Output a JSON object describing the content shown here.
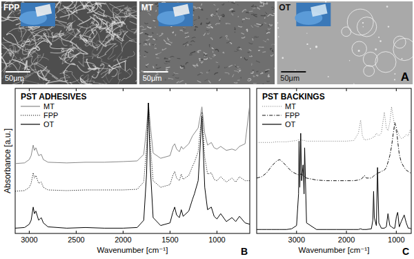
{
  "image_panels": {
    "letter": "A",
    "panels": [
      {
        "label": "FPP",
        "scale_bar": "50μm"
      },
      {
        "label": "MT",
        "scale_bar": "50μm"
      },
      {
        "label": "OT",
        "scale_bar": "50μm"
      }
    ]
  },
  "chart_data": [
    {
      "type": "line",
      "title": "PST ADHESIVES",
      "x_label": "Wavenumber [cm⁻¹]",
      "y_label": "Absorbance [a.u.]",
      "annotations": [
        "B"
      ],
      "legend": "upper left",
      "grid": false,
      "tick_labels": "x",
      "xlim": [
        3150,
        650
      ],
      "xticks": [
        3000,
        2500,
        2000,
        1500,
        1000
      ],
      "ylim": [
        0,
        11
      ],
      "x": [
        3150,
        3050,
        3000,
        2980,
        2958,
        2945,
        2930,
        2900,
        2872,
        2850,
        2800,
        2600,
        2400,
        2200,
        2000,
        1850,
        1780,
        1750,
        1730,
        1710,
        1680,
        1600,
        1500,
        1470,
        1450,
        1430,
        1400,
        1380,
        1360,
        1300,
        1260,
        1240,
        1200,
        1160,
        1130,
        1100,
        1060,
        1030,
        1000,
        960,
        900,
        840,
        800,
        760,
        700,
        650
      ],
      "series": [
        {
          "name": "MT",
          "color": "#888888",
          "line_style": "solid",
          "values": [
            5.3,
            5.35,
            5.6,
            5.9,
            6.7,
            6.3,
            6.5,
            5.9,
            6.0,
            5.6,
            5.4,
            5.35,
            5.4,
            5.4,
            5.45,
            5.5,
            6.0,
            8.0,
            9.9,
            8.2,
            6.1,
            5.7,
            5.9,
            6.6,
            6.8,
            6.4,
            6.2,
            6.6,
            6.4,
            6.8,
            7.4,
            7.6,
            8.0,
            9.6,
            7.6,
            6.7,
            6.9,
            6.5,
            6.4,
            6.6,
            6.3,
            6.4,
            6.3,
            6.6,
            6.8,
            9.8
          ]
        },
        {
          "name": "FPP",
          "color": "#111111",
          "line_style": "dotted",
          "values": [
            3.2,
            3.25,
            3.5,
            3.8,
            4.6,
            4.2,
            4.4,
            3.8,
            3.9,
            3.5,
            3.3,
            3.25,
            3.3,
            3.3,
            3.3,
            3.35,
            3.9,
            6.5,
            9.9,
            6.8,
            4.0,
            3.5,
            3.7,
            4.4,
            4.7,
            4.2,
            4.0,
            4.5,
            4.1,
            4.4,
            5.1,
            5.4,
            6.2,
            9.2,
            5.8,
            4.5,
            4.6,
            4.1,
            4.0,
            4.3,
            3.9,
            4.2,
            3.9,
            4.3,
            4.0,
            4.0
          ]
        },
        {
          "name": "OT",
          "color": "#000000",
          "line_style": "solid",
          "values": [
            0.4,
            0.45,
            0.7,
            1.0,
            2.0,
            1.5,
            1.7,
            1.0,
            1.2,
            0.8,
            0.5,
            0.4,
            0.45,
            0.4,
            0.4,
            0.45,
            1.0,
            4.5,
            9.9,
            5.0,
            1.2,
            0.6,
            0.8,
            1.6,
            2.0,
            1.4,
            1.2,
            1.8,
            1.3,
            1.7,
            2.6,
            3.0,
            4.0,
            8.9,
            3.5,
            1.8,
            2.0,
            1.3,
            1.1,
            1.5,
            0.9,
            1.2,
            0.9,
            1.3,
            0.8,
            0.7
          ]
        }
      ]
    },
    {
      "type": "line",
      "title": "PST BACKINGS",
      "x_label": "Wavenumber [cm⁻¹]",
      "annotations": [
        "C"
      ],
      "legend": "upper left",
      "grid": false,
      "tick_labels": "x",
      "xlim": [
        3800,
        700
      ],
      "xticks": [
        3000,
        2000,
        1000
      ],
      "ylim": [
        0,
        11
      ],
      "x": [
        3800,
        3700,
        3600,
        3500,
        3400,
        3340,
        3300,
        3200,
        3100,
        3000,
        2960,
        2950,
        2935,
        2917,
        2900,
        2870,
        2850,
        2838,
        2800,
        2600,
        2400,
        2200,
        2000,
        1850,
        1760,
        1715,
        1680,
        1640,
        1600,
        1500,
        1470,
        1455,
        1440,
        1400,
        1376,
        1350,
        1300,
        1240,
        1200,
        1167,
        1130,
        1095,
        1060,
        1030,
        997,
        972,
        940,
        900,
        841,
        800,
        760,
        720,
        700
      ],
      "series": [
        {
          "name": "MT",
          "color": "#888888",
          "line_style": "dotted",
          "values": [
            6.9,
            6.9,
            6.9,
            6.9,
            6.95,
            6.95,
            6.95,
            6.95,
            7.0,
            7.05,
            7.1,
            7.1,
            7.1,
            7.1,
            7.1,
            7.05,
            7.05,
            7.05,
            7.0,
            7.0,
            7.0,
            7.0,
            7.0,
            7.05,
            7.6,
            8.6,
            7.4,
            7.1,
            7.1,
            7.2,
            7.3,
            7.3,
            7.3,
            7.6,
            7.5,
            7.4,
            7.6,
            9.2,
            8.0,
            7.8,
            8.4,
            9.6,
            8.8,
            8.0,
            7.6,
            7.8,
            7.4,
            7.2,
            7.3,
            7.5,
            7.4,
            7.9,
            7.3
          ]
        },
        {
          "name": "FPP",
          "color": "#111111",
          "line_style": "dashdot",
          "values": [
            4.2,
            4.3,
            4.6,
            5.1,
            5.5,
            5.6,
            5.5,
            5.1,
            4.7,
            4.5,
            4.45,
            4.45,
            4.45,
            4.5,
            4.5,
            4.4,
            4.35,
            4.3,
            4.2,
            4.05,
            4.0,
            4.0,
            4.0,
            4.0,
            4.05,
            4.1,
            4.2,
            4.4,
            4.2,
            4.2,
            4.3,
            4.35,
            4.4,
            4.5,
            4.6,
            4.6,
            4.7,
            4.8,
            5.0,
            5.4,
            5.9,
            6.6,
            7.6,
            8.4,
            8.0,
            7.0,
            6.0,
            5.4,
            5.0,
            4.8,
            4.7,
            4.6,
            4.6
          ]
        },
        {
          "name": "OT",
          "color": "#000000",
          "line_style": "solid",
          "values": [
            0.3,
            0.3,
            0.3,
            0.3,
            0.3,
            0.3,
            0.3,
            0.3,
            0.35,
            0.6,
            3.0,
            7.0,
            3.5,
            7.6,
            4.0,
            5.2,
            3.0,
            6.5,
            0.8,
            0.3,
            0.3,
            0.3,
            0.3,
            0.3,
            0.3,
            0.35,
            0.3,
            0.3,
            0.3,
            0.35,
            1.0,
            3.2,
            1.2,
            0.6,
            5.0,
            0.8,
            0.4,
            0.4,
            0.5,
            1.5,
            0.6,
            0.5,
            0.4,
            0.4,
            1.3,
            1.6,
            0.5,
            0.9,
            1.4,
            0.8,
            0.4,
            0.4,
            0.3
          ]
        }
      ]
    }
  ]
}
